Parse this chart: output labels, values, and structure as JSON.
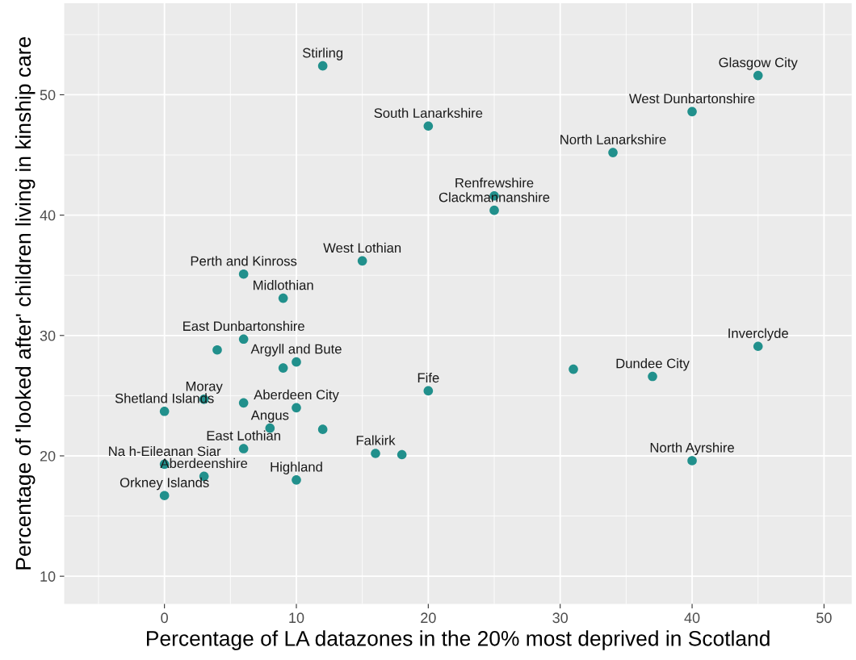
{
  "chart_data": {
    "type": "scatter",
    "xlabel": "Percentage of LA datazones in the 20% most deprived in Scotland",
    "ylabel": "Percentage of 'looked after' children living in kinship care",
    "x": [
      12,
      45,
      40,
      20,
      34,
      25,
      25,
      15,
      6,
      9,
      6,
      4,
      10,
      9,
      45,
      31,
      37,
      20,
      3,
      10,
      6,
      0,
      8,
      12,
      6,
      16,
      18,
      40,
      0,
      3,
      10,
      0
    ],
    "series": [
      {
        "color": "#21908c",
        "values": [
          52.4,
          51.6,
          48.6,
          47.4,
          45.2,
          41.6,
          40.4,
          36.2,
          35.1,
          33.1,
          29.7,
          28.8,
          27.8,
          27.3,
          29.1,
          27.2,
          26.6,
          25.4,
          24.7,
          24.0,
          24.4,
          23.7,
          22.3,
          22.2,
          20.6,
          20.2,
          20.1,
          19.6,
          19.3,
          18.3,
          18.0,
          16.7
        ]
      }
    ],
    "annotations": [
      {
        "text": "Stirling",
        "x": 12,
        "y": 52.4
      },
      {
        "text": "Glasgow City",
        "x": 45,
        "y": 51.6
      },
      {
        "text": "West Dunbartonshire",
        "x": 40,
        "y": 48.6
      },
      {
        "text": "South Lanarkshire",
        "x": 20,
        "y": 47.4
      },
      {
        "text": "North Lanarkshire",
        "x": 34,
        "y": 45.2
      },
      {
        "text": "Renfrewshire",
        "x": 25,
        "y": 41.6
      },
      {
        "text": "Clackmannanshire",
        "x": 25,
        "y": 40.4
      },
      {
        "text": "West Lothian",
        "x": 15,
        "y": 36.2
      },
      {
        "text": "Perth and Kinross",
        "x": 6,
        "y": 35.1
      },
      {
        "text": "Midlothian",
        "x": 9,
        "y": 33.1
      },
      {
        "text": "East Dunbartonshire",
        "x": 6,
        "y": 29.7
      },
      {
        "text": "Argyll and Bute",
        "x": 10,
        "y": 27.8
      },
      {
        "text": "Inverclyde",
        "x": 45,
        "y": 29.1
      },
      {
        "text": "Dundee City",
        "x": 37,
        "y": 26.6
      },
      {
        "text": "Fife",
        "x": 20,
        "y": 25.4
      },
      {
        "text": "Moray",
        "x": 3,
        "y": 24.7
      },
      {
        "text": "Aberdeen City",
        "x": 10,
        "y": 24.0
      },
      {
        "text": "Shetland Islands",
        "x": 0,
        "y": 23.7
      },
      {
        "text": "Angus",
        "x": 8,
        "y": 22.3
      },
      {
        "text": "East Lothian",
        "x": 6,
        "y": 20.6
      },
      {
        "text": "Falkirk",
        "x": 16,
        "y": 20.2
      },
      {
        "text": "North Ayrshire",
        "x": 40,
        "y": 19.6
      },
      {
        "text": "Na h-Eileanan Siar",
        "x": 0,
        "y": 19.3
      },
      {
        "text": "Aberdeenshire",
        "x": 3,
        "y": 18.3
      },
      {
        "text": "Highland",
        "x": 10,
        "y": 18.0
      },
      {
        "text": "Orkney Islands",
        "x": 0,
        "y": 16.7
      }
    ],
    "xlim": [
      -7.6,
      52.1
    ],
    "ylim": [
      7.7,
      57.6
    ],
    "xticks": [
      {
        "value": -5,
        "label": null
      },
      0,
      {
        "value": 5,
        "label": null
      },
      10,
      {
        "value": 15,
        "label": null
      },
      20,
      {
        "value": 25,
        "label": null
      },
      30,
      {
        "value": 35,
        "label": null
      },
      40,
      {
        "value": 45,
        "label": null
      },
      50
    ],
    "yticks": [
      10,
      {
        "value": 15,
        "label": null
      },
      20,
      {
        "value": 25,
        "label": null
      },
      30,
      {
        "value": 35,
        "label": null
      },
      40,
      {
        "value": 45,
        "label": null
      },
      50,
      {
        "value": 55,
        "label": null
      }
    ],
    "grid": true,
    "marker": "circle"
  }
}
